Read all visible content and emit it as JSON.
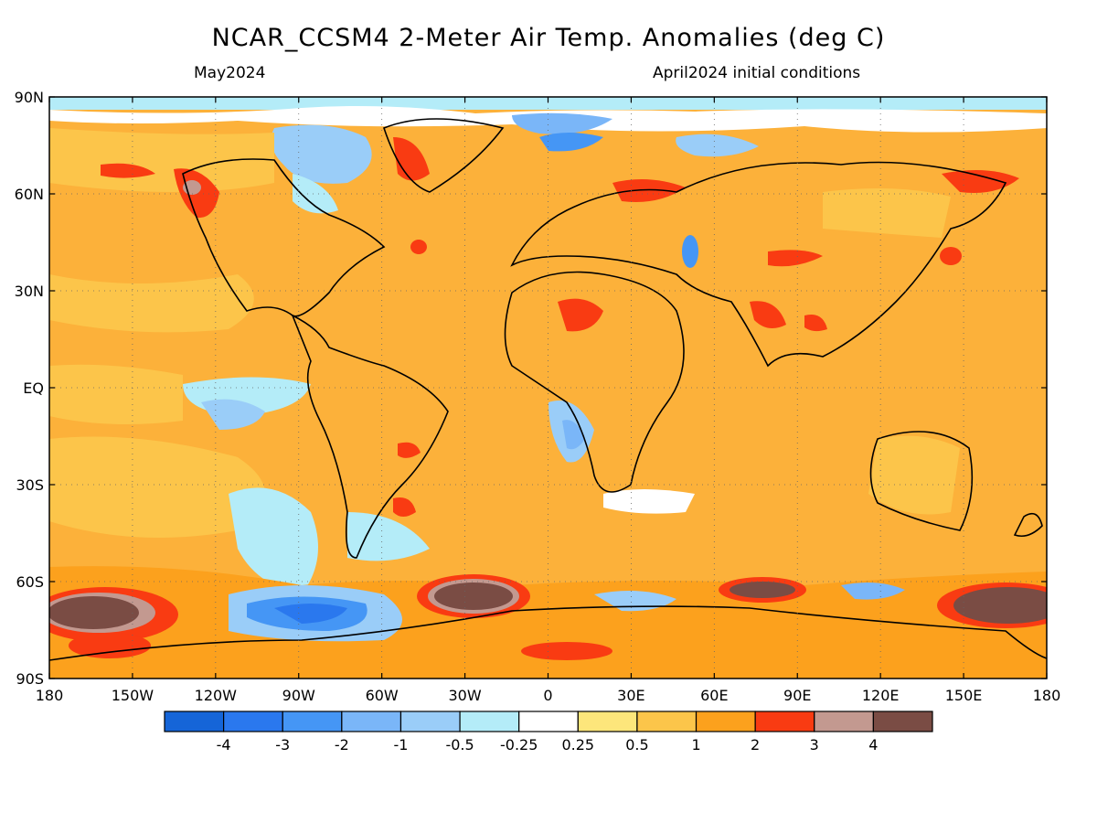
{
  "header": {
    "title": "NCAR_CCSM4 2-Meter Air Temp. Anomalies (deg C)",
    "valid_month": "May2024",
    "init_label": "April2024 initial conditions"
  },
  "map": {
    "lat_labels": [
      "90N",
      "60N",
      "30N",
      "EQ",
      "30S",
      "60S",
      "90S"
    ],
    "lon_labels": [
      "180",
      "150W",
      "120W",
      "90W",
      "60W",
      "30W",
      "0",
      "30E",
      "60E",
      "90E",
      "120E",
      "150E",
      "180"
    ],
    "ocean_color": "#fcb13a",
    "colors": {
      "neg4": "#1565d8",
      "neg3": "#2a78ee",
      "neg2": "#4596f5",
      "neg1": "#7ab6f8",
      "neg05": "#9acdf8",
      "neg025": "#b4ecf8",
      "zero": "#ffffff",
      "pos025": "#fde67b",
      "pos05": "#fcc54a",
      "pos1": "#fca11d",
      "pos2": "#f93b12",
      "pos3": "#c39990",
      "pos4": "#7a4c44"
    }
  },
  "colorbar": {
    "colors": [
      "#1565d8",
      "#2a78ee",
      "#4596f5",
      "#7ab6f8",
      "#9acdf8",
      "#b4ecf8",
      "#ffffff",
      "#fde67b",
      "#fcc54a",
      "#fca11d",
      "#f93b12",
      "#c39990",
      "#7a4c44"
    ],
    "labels": [
      "-4",
      "-3",
      "-2",
      "-1",
      "-0.5",
      "-0.25",
      "0.25",
      "0.5",
      "1",
      "2",
      "3",
      "4"
    ]
  }
}
